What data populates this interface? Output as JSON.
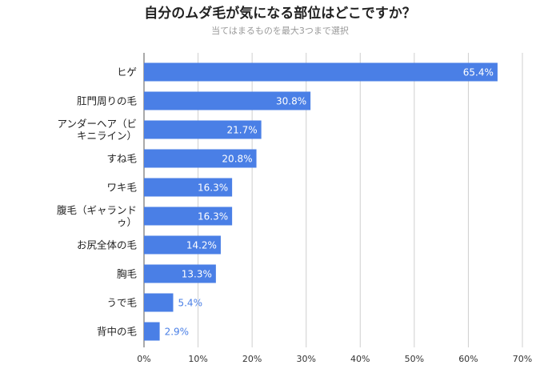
{
  "chart_data": {
    "type": "bar",
    "orientation": "horizontal",
    "title": "自分のムダ毛が気になる部位はどこですか？",
    "subtitle": "当てはまるものを最大3つまで選択",
    "categories": [
      [
        "ヒゲ"
      ],
      [
        "肛門周りの毛"
      ],
      [
        "アンダーヘア（ビ",
        "キニライン）"
      ],
      [
        "すね毛"
      ],
      [
        "ワキ毛"
      ],
      [
        "腹毛（ギャランド",
        "ゥ）"
      ],
      [
        "お尻全体の毛"
      ],
      [
        "胸毛"
      ],
      [
        "うで毛"
      ],
      [
        "背中の毛"
      ]
    ],
    "values": [
      65.4,
      30.8,
      21.7,
      20.8,
      16.3,
      16.3,
      14.2,
      13.3,
      5.4,
      2.9
    ],
    "value_labels": [
      "65.4%",
      "30.8%",
      "21.7%",
      "20.8%",
      "16.3%",
      "16.3%",
      "14.2%",
      "13.3%",
      "5.4%",
      "2.9%"
    ],
    "xlim": [
      0,
      70
    ],
    "xticks": [
      0,
      10,
      20,
      30,
      40,
      50,
      60,
      70
    ],
    "xtick_labels": [
      "0%",
      "10%",
      "20%",
      "30%",
      "40%",
      "50%",
      "60%",
      "70%"
    ],
    "xlabel": "",
    "ylabel": "",
    "grid": true,
    "bar_color": "#4a7fe6",
    "label_inside_color": "#ffffff",
    "label_outside_color": "#4a7fe6"
  }
}
